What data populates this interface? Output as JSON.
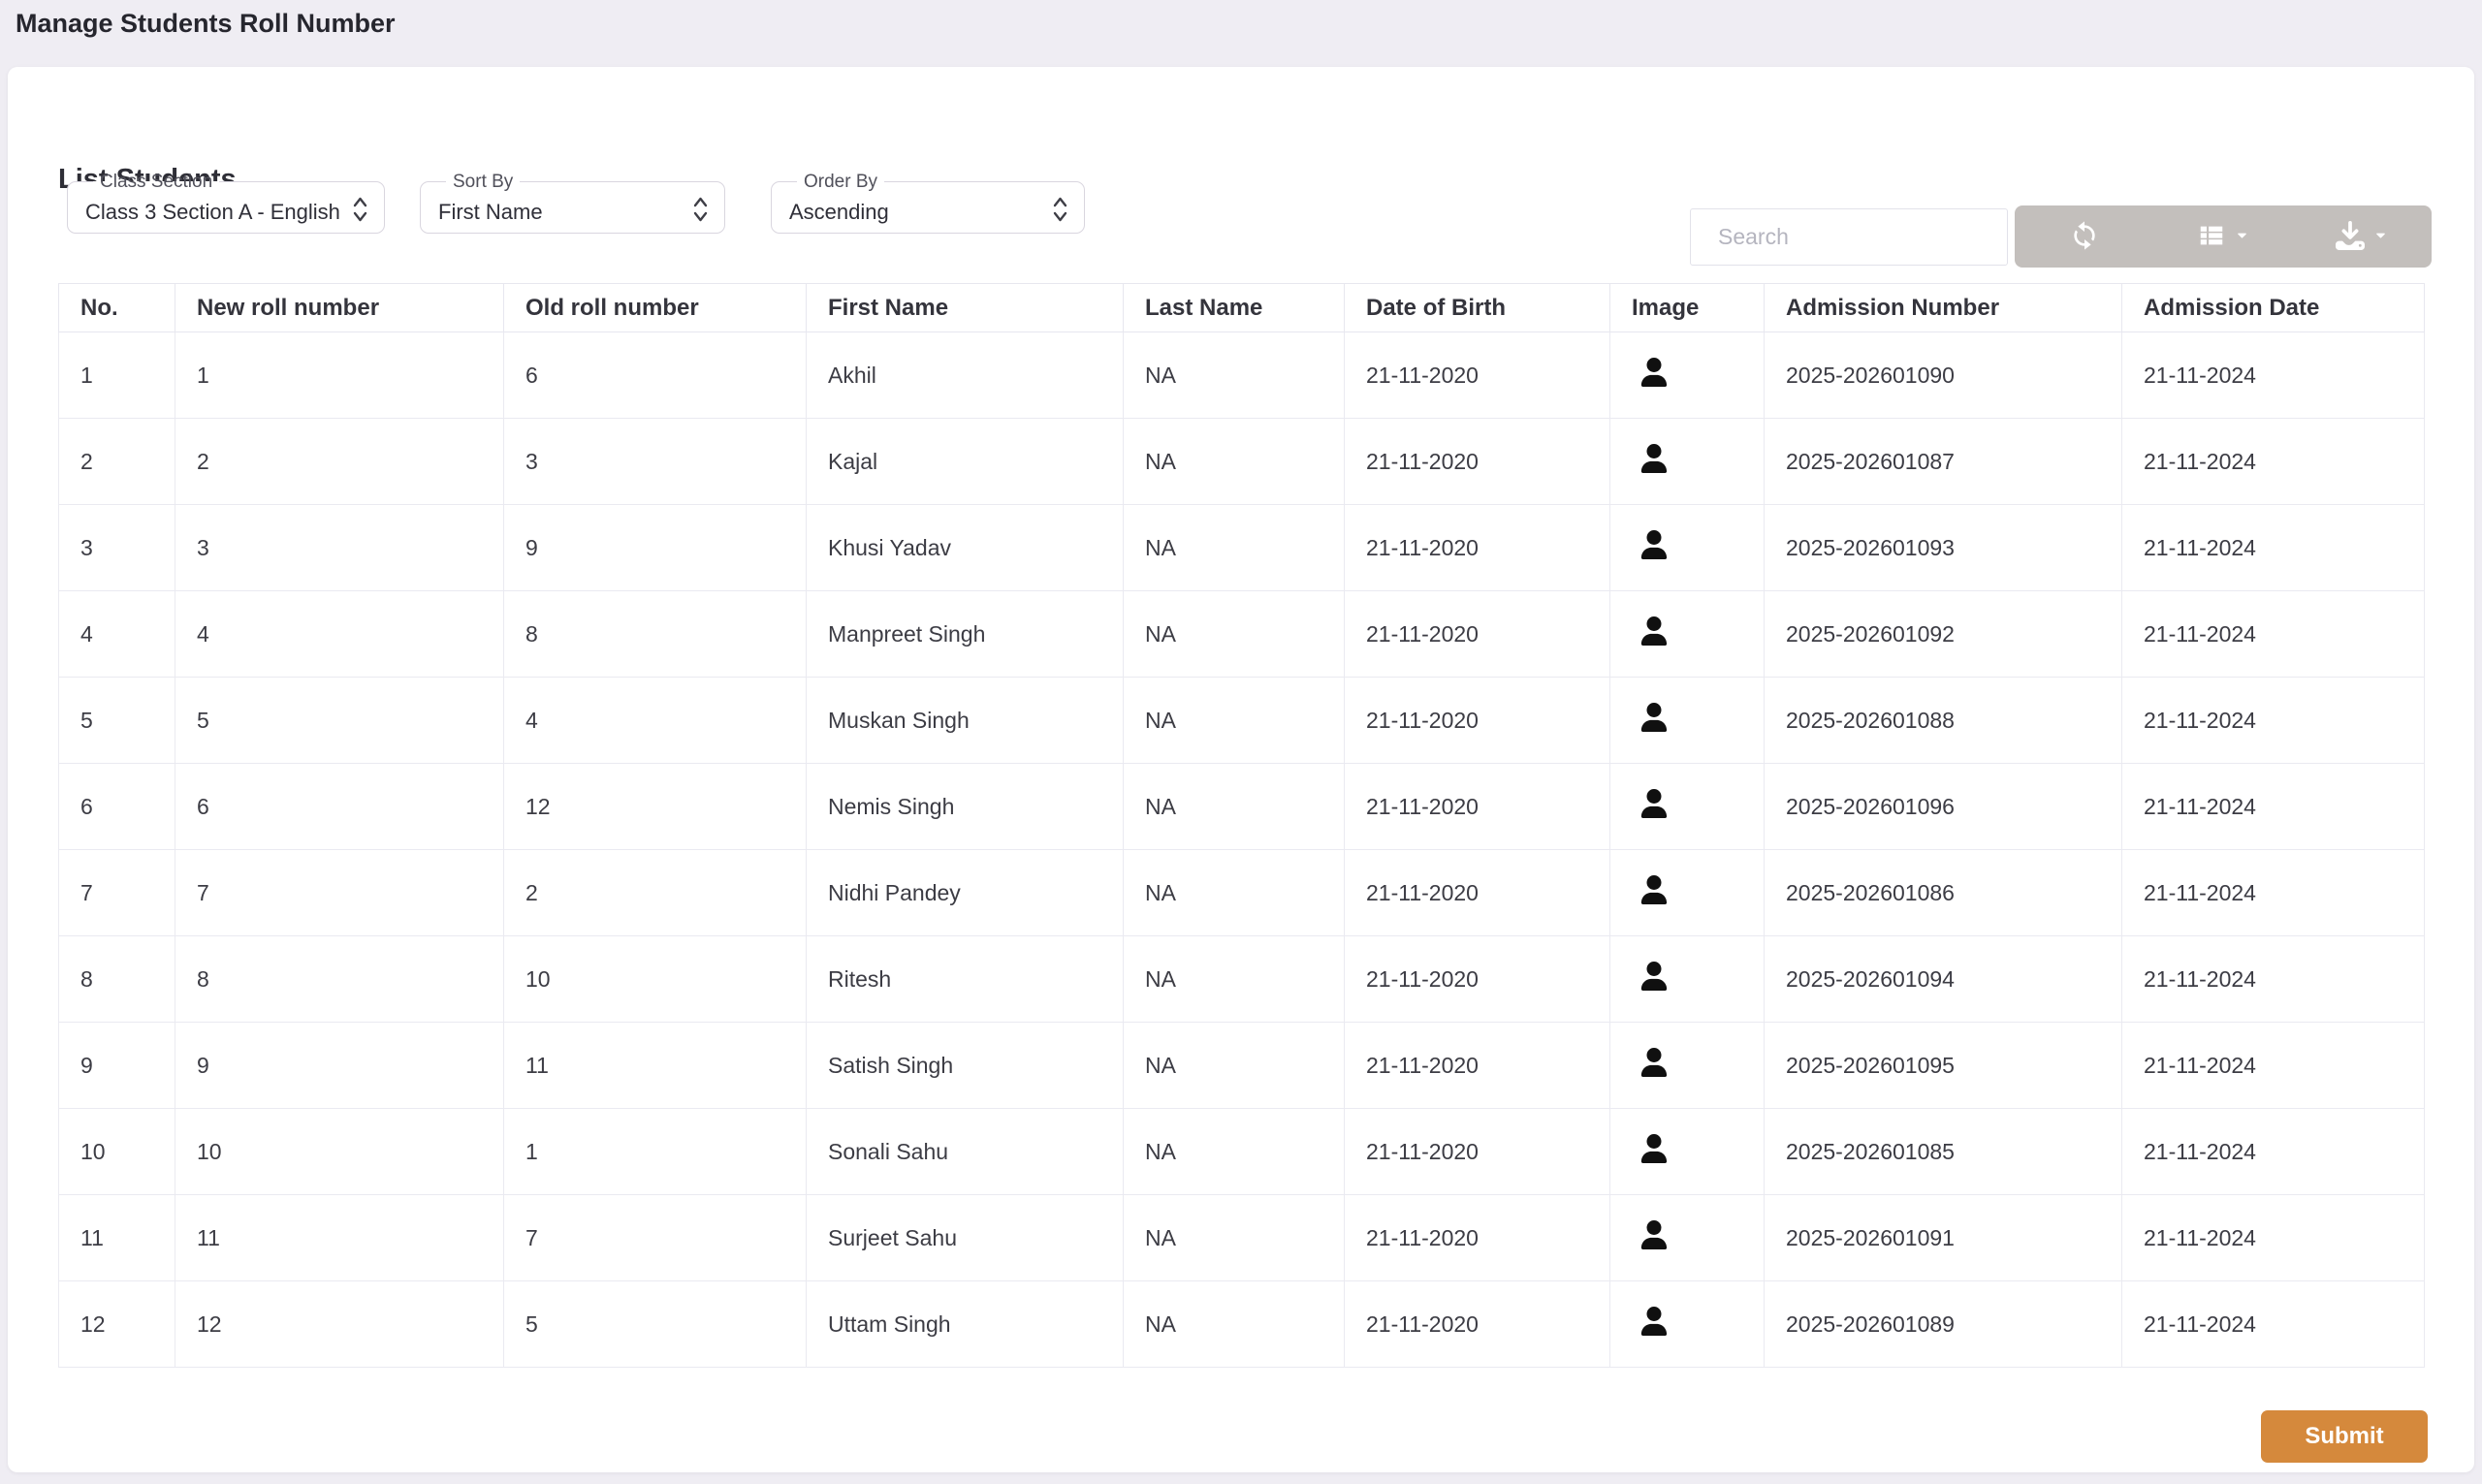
{
  "page_title": "Manage Students Roll Number",
  "panel": {
    "heading": "List Students",
    "filters": [
      {
        "label": "Class Section",
        "value": "Class 3 Section A - English",
        "icon": "updown-chevron-icon"
      },
      {
        "label": "Sort By",
        "value": "First Name",
        "icon": "updown-chevron-icon"
      },
      {
        "label": "Order By",
        "value": "Ascending",
        "icon": "updown-chevron-icon"
      }
    ],
    "search": {
      "placeholder": "Search"
    },
    "toolbar": {
      "buttons": [
        {
          "name": "refresh",
          "icon": "refresh-icon",
          "caret": false
        },
        {
          "name": "view-columns",
          "icon": "table-list-icon",
          "caret": true
        },
        {
          "name": "export",
          "icon": "download-icon",
          "caret": true
        }
      ]
    },
    "table": {
      "headers": [
        "No.",
        "New roll number",
        "Old roll number",
        "First Name",
        "Last Name",
        "Date of Birth",
        "Image",
        "Admission Number",
        "Admission Date"
      ],
      "image_icon": "user-icon",
      "rows": [
        {
          "no": "1",
          "new_roll": "1",
          "old_roll": "6",
          "first_name": "Akhil",
          "last_name": "NA",
          "dob": "21-11-2020",
          "admission_number": "2025-202601090",
          "admission_date": "21-11-2024"
        },
        {
          "no": "2",
          "new_roll": "2",
          "old_roll": "3",
          "first_name": "Kajal",
          "last_name": "NA",
          "dob": "21-11-2020",
          "admission_number": "2025-202601087",
          "admission_date": "21-11-2024"
        },
        {
          "no": "3",
          "new_roll": "3",
          "old_roll": "9",
          "first_name": "Khusi Yadav",
          "last_name": "NA",
          "dob": "21-11-2020",
          "admission_number": "2025-202601093",
          "admission_date": "21-11-2024"
        },
        {
          "no": "4",
          "new_roll": "4",
          "old_roll": "8",
          "first_name": "Manpreet Singh",
          "last_name": "NA",
          "dob": "21-11-2020",
          "admission_number": "2025-202601092",
          "admission_date": "21-11-2024"
        },
        {
          "no": "5",
          "new_roll": "5",
          "old_roll": "4",
          "first_name": "Muskan Singh",
          "last_name": "NA",
          "dob": "21-11-2020",
          "admission_number": "2025-202601088",
          "admission_date": "21-11-2024"
        },
        {
          "no": "6",
          "new_roll": "6",
          "old_roll": "12",
          "first_name": "Nemis Singh",
          "last_name": "NA",
          "dob": "21-11-2020",
          "admission_number": "2025-202601096",
          "admission_date": "21-11-2024"
        },
        {
          "no": "7",
          "new_roll": "7",
          "old_roll": "2",
          "first_name": "Nidhi Pandey",
          "last_name": "NA",
          "dob": "21-11-2020",
          "admission_number": "2025-202601086",
          "admission_date": "21-11-2024"
        },
        {
          "no": "8",
          "new_roll": "8",
          "old_roll": "10",
          "first_name": "Ritesh",
          "last_name": "NA",
          "dob": "21-11-2020",
          "admission_number": "2025-202601094",
          "admission_date": "21-11-2024"
        },
        {
          "no": "9",
          "new_roll": "9",
          "old_roll": "11",
          "first_name": "Satish Singh",
          "last_name": "NA",
          "dob": "21-11-2020",
          "admission_number": "2025-202601095",
          "admission_date": "21-11-2024"
        },
        {
          "no": "10",
          "new_roll": "10",
          "old_roll": "1",
          "first_name": "Sonali Sahu",
          "last_name": "NA",
          "dob": "21-11-2020",
          "admission_number": "2025-202601085",
          "admission_date": "21-11-2024"
        },
        {
          "no": "11",
          "new_roll": "11",
          "old_roll": "7",
          "first_name": "Surjeet Sahu",
          "last_name": "NA",
          "dob": "21-11-2020",
          "admission_number": "2025-202601091",
          "admission_date": "21-11-2024"
        },
        {
          "no": "12",
          "new_roll": "12",
          "old_roll": "5",
          "first_name": "Uttam Singh",
          "last_name": "NA",
          "dob": "21-11-2020",
          "admission_number": "2025-202601089",
          "admission_date": "21-11-2024"
        }
      ]
    },
    "submit_label": "Submit"
  },
  "colors": {
    "page_background": "#efedf3",
    "card_background": "#ffffff",
    "toolbar_gray": "#c3bfbc",
    "accent_orange": "#d5893c",
    "table_border": "#eaeaf1",
    "text_dark": "#2e2e36"
  }
}
